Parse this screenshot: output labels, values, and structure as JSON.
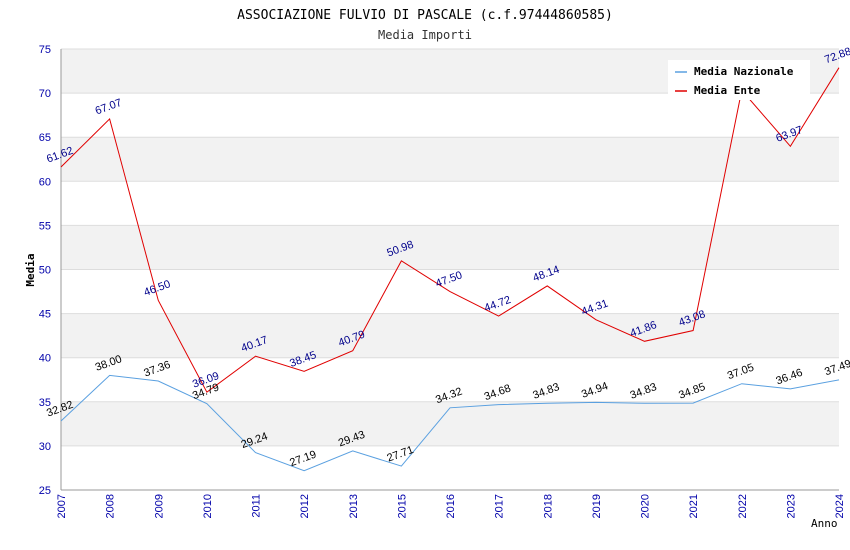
{
  "chart_data": {
    "type": "line",
    "title": "ASSOCIAZIONE FULVIO DI PASCALE (c.f.97444860585)",
    "subtitle": "Media Importi",
    "ylabel": "Media",
    "xlabel": "Anno",
    "ylim": [
      25,
      75
    ],
    "yticks": [
      25,
      30,
      35,
      40,
      45,
      50,
      55,
      60,
      65,
      70,
      75
    ],
    "categories": [
      "2007",
      "2008",
      "2009",
      "2010",
      "2011",
      "2012",
      "2013",
      "2015",
      "2016",
      "2017",
      "2018",
      "2019",
      "2020",
      "2021",
      "2022",
      "2023",
      "2024"
    ],
    "series": [
      {
        "name": "Media Nazionale",
        "color": "#5aa0e0",
        "label_color": "#000000",
        "values": [
          32.82,
          38.0,
          37.36,
          34.79,
          29.24,
          27.19,
          29.43,
          27.71,
          34.32,
          34.68,
          34.83,
          34.94,
          34.83,
          34.85,
          37.05,
          36.46,
          37.49
        ],
        "labels": [
          "32.82",
          "38.00",
          "37.36",
          "34.79",
          "29.24",
          "27.19",
          "29.43",
          "27.71",
          "34.32",
          "34.68",
          "34.83",
          "34.94",
          "34.83",
          "34.85",
          "37.05",
          "36.46",
          "37.49"
        ]
      },
      {
        "name": "Media Ente",
        "color": "#e00000",
        "label_color": "#00008b",
        "values": [
          61.62,
          67.07,
          46.5,
          36.09,
          40.17,
          38.45,
          40.79,
          50.98,
          47.5,
          44.72,
          48.14,
          44.31,
          41.86,
          43.08,
          70.32,
          63.97,
          72.88
        ],
        "labels": [
          "61.62",
          "67.07",
          "46.50",
          "36.09",
          "40.17",
          "38.45",
          "40.79",
          "50.98",
          "47.50",
          "44.72",
          "48.14",
          "44.31",
          "41.86",
          "43.08",
          "",
          "63.97",
          "72.88"
        ]
      }
    ],
    "legend": "top-right",
    "grid": true
  }
}
